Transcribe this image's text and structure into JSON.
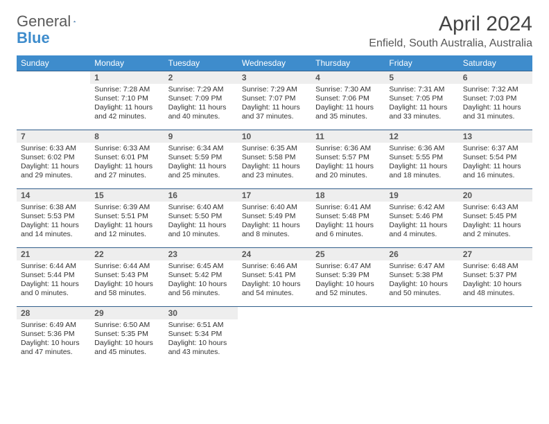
{
  "brand": {
    "name_a": "General",
    "name_b": "Blue"
  },
  "title": "April 2024",
  "location": "Enfield, South Australia, Australia",
  "colors": {
    "header_bg": "#3e8ccc",
    "header_text": "#ffffff",
    "week_border": "#2f5d8a",
    "daynum_bg": "#eeeeee",
    "text": "#333333",
    "page_bg": "#ffffff"
  },
  "day_headers": [
    "Sunday",
    "Monday",
    "Tuesday",
    "Wednesday",
    "Thursday",
    "Friday",
    "Saturday"
  ],
  "cells": [
    {
      "n": "",
      "sr": "",
      "ss": "",
      "dl": ""
    },
    {
      "n": "1",
      "sr": "Sunrise: 7:28 AM",
      "ss": "Sunset: 7:10 PM",
      "dl": "Daylight: 11 hours and 42 minutes."
    },
    {
      "n": "2",
      "sr": "Sunrise: 7:29 AM",
      "ss": "Sunset: 7:09 PM",
      "dl": "Daylight: 11 hours and 40 minutes."
    },
    {
      "n": "3",
      "sr": "Sunrise: 7:29 AM",
      "ss": "Sunset: 7:07 PM",
      "dl": "Daylight: 11 hours and 37 minutes."
    },
    {
      "n": "4",
      "sr": "Sunrise: 7:30 AM",
      "ss": "Sunset: 7:06 PM",
      "dl": "Daylight: 11 hours and 35 minutes."
    },
    {
      "n": "5",
      "sr": "Sunrise: 7:31 AM",
      "ss": "Sunset: 7:05 PM",
      "dl": "Daylight: 11 hours and 33 minutes."
    },
    {
      "n": "6",
      "sr": "Sunrise: 7:32 AM",
      "ss": "Sunset: 7:03 PM",
      "dl": "Daylight: 11 hours and 31 minutes."
    },
    {
      "n": "7",
      "sr": "Sunrise: 6:33 AM",
      "ss": "Sunset: 6:02 PM",
      "dl": "Daylight: 11 hours and 29 minutes."
    },
    {
      "n": "8",
      "sr": "Sunrise: 6:33 AM",
      "ss": "Sunset: 6:01 PM",
      "dl": "Daylight: 11 hours and 27 minutes."
    },
    {
      "n": "9",
      "sr": "Sunrise: 6:34 AM",
      "ss": "Sunset: 5:59 PM",
      "dl": "Daylight: 11 hours and 25 minutes."
    },
    {
      "n": "10",
      "sr": "Sunrise: 6:35 AM",
      "ss": "Sunset: 5:58 PM",
      "dl": "Daylight: 11 hours and 23 minutes."
    },
    {
      "n": "11",
      "sr": "Sunrise: 6:36 AM",
      "ss": "Sunset: 5:57 PM",
      "dl": "Daylight: 11 hours and 20 minutes."
    },
    {
      "n": "12",
      "sr": "Sunrise: 6:36 AM",
      "ss": "Sunset: 5:55 PM",
      "dl": "Daylight: 11 hours and 18 minutes."
    },
    {
      "n": "13",
      "sr": "Sunrise: 6:37 AM",
      "ss": "Sunset: 5:54 PM",
      "dl": "Daylight: 11 hours and 16 minutes."
    },
    {
      "n": "14",
      "sr": "Sunrise: 6:38 AM",
      "ss": "Sunset: 5:53 PM",
      "dl": "Daylight: 11 hours and 14 minutes."
    },
    {
      "n": "15",
      "sr": "Sunrise: 6:39 AM",
      "ss": "Sunset: 5:51 PM",
      "dl": "Daylight: 11 hours and 12 minutes."
    },
    {
      "n": "16",
      "sr": "Sunrise: 6:40 AM",
      "ss": "Sunset: 5:50 PM",
      "dl": "Daylight: 11 hours and 10 minutes."
    },
    {
      "n": "17",
      "sr": "Sunrise: 6:40 AM",
      "ss": "Sunset: 5:49 PM",
      "dl": "Daylight: 11 hours and 8 minutes."
    },
    {
      "n": "18",
      "sr": "Sunrise: 6:41 AM",
      "ss": "Sunset: 5:48 PM",
      "dl": "Daylight: 11 hours and 6 minutes."
    },
    {
      "n": "19",
      "sr": "Sunrise: 6:42 AM",
      "ss": "Sunset: 5:46 PM",
      "dl": "Daylight: 11 hours and 4 minutes."
    },
    {
      "n": "20",
      "sr": "Sunrise: 6:43 AM",
      "ss": "Sunset: 5:45 PM",
      "dl": "Daylight: 11 hours and 2 minutes."
    },
    {
      "n": "21",
      "sr": "Sunrise: 6:44 AM",
      "ss": "Sunset: 5:44 PM",
      "dl": "Daylight: 11 hours and 0 minutes."
    },
    {
      "n": "22",
      "sr": "Sunrise: 6:44 AM",
      "ss": "Sunset: 5:43 PM",
      "dl": "Daylight: 10 hours and 58 minutes."
    },
    {
      "n": "23",
      "sr": "Sunrise: 6:45 AM",
      "ss": "Sunset: 5:42 PM",
      "dl": "Daylight: 10 hours and 56 minutes."
    },
    {
      "n": "24",
      "sr": "Sunrise: 6:46 AM",
      "ss": "Sunset: 5:41 PM",
      "dl": "Daylight: 10 hours and 54 minutes."
    },
    {
      "n": "25",
      "sr": "Sunrise: 6:47 AM",
      "ss": "Sunset: 5:39 PM",
      "dl": "Daylight: 10 hours and 52 minutes."
    },
    {
      "n": "26",
      "sr": "Sunrise: 6:47 AM",
      "ss": "Sunset: 5:38 PM",
      "dl": "Daylight: 10 hours and 50 minutes."
    },
    {
      "n": "27",
      "sr": "Sunrise: 6:48 AM",
      "ss": "Sunset: 5:37 PM",
      "dl": "Daylight: 10 hours and 48 minutes."
    },
    {
      "n": "28",
      "sr": "Sunrise: 6:49 AM",
      "ss": "Sunset: 5:36 PM",
      "dl": "Daylight: 10 hours and 47 minutes."
    },
    {
      "n": "29",
      "sr": "Sunrise: 6:50 AM",
      "ss": "Sunset: 5:35 PM",
      "dl": "Daylight: 10 hours and 45 minutes."
    },
    {
      "n": "30",
      "sr": "Sunrise: 6:51 AM",
      "ss": "Sunset: 5:34 PM",
      "dl": "Daylight: 10 hours and 43 minutes."
    },
    {
      "n": "",
      "sr": "",
      "ss": "",
      "dl": ""
    },
    {
      "n": "",
      "sr": "",
      "ss": "",
      "dl": ""
    },
    {
      "n": "",
      "sr": "",
      "ss": "",
      "dl": ""
    },
    {
      "n": "",
      "sr": "",
      "ss": "",
      "dl": ""
    }
  ]
}
